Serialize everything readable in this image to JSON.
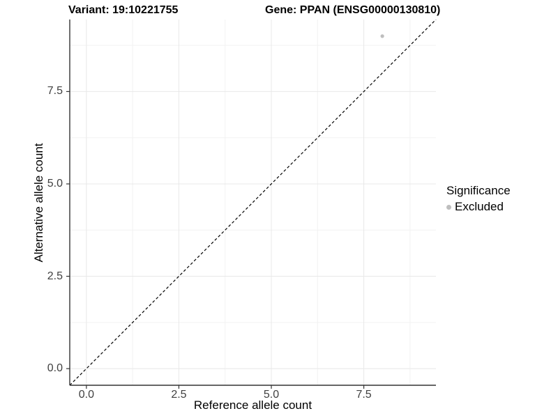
{
  "header": {
    "title_left": "Variant: 19:10221755",
    "title_right": "Gene: PPAN (ENSG00000130810)"
  },
  "chart_data": {
    "type": "scatter",
    "title_left": "Variant: 19:10221755",
    "title_right": "Gene: PPAN (ENSG00000130810)",
    "xlabel": "Reference allele count",
    "ylabel": "Alternative allele count",
    "xlim": [
      -0.45,
      9.45
    ],
    "ylim": [
      -0.45,
      9.45
    ],
    "xticks": {
      "values": [
        0,
        2.5,
        5,
        7.5
      ],
      "labels": [
        "0.0",
        "2.5",
        "5.0",
        "7.5"
      ]
    },
    "yticks": {
      "values": [
        0,
        2.5,
        5,
        7.5
      ],
      "labels": [
        "0.0",
        "2.5",
        "5.0",
        "7.5"
      ]
    },
    "minor_ticks_x": [
      1.25,
      3.75,
      6.25,
      8.75
    ],
    "minor_ticks_y": [
      1.25,
      3.75,
      6.25,
      8.75
    ],
    "grid": {
      "on": true,
      "major_color": "#e8e8e8",
      "minor_color": "#f2f2f2",
      "background": "#ffffff"
    },
    "axis_line_color": "#333333",
    "reference_line": {
      "equation": "y = x",
      "style": "dashed",
      "color": "#000000"
    },
    "series": [
      {
        "name": "Excluded",
        "color": "#bebebe",
        "points": [
          {
            "x": 8,
            "y": 9
          }
        ]
      }
    ],
    "legend": {
      "title": "Significance",
      "position": "right",
      "items": [
        {
          "label": "Excluded",
          "color": "#bebebe"
        }
      ]
    }
  }
}
